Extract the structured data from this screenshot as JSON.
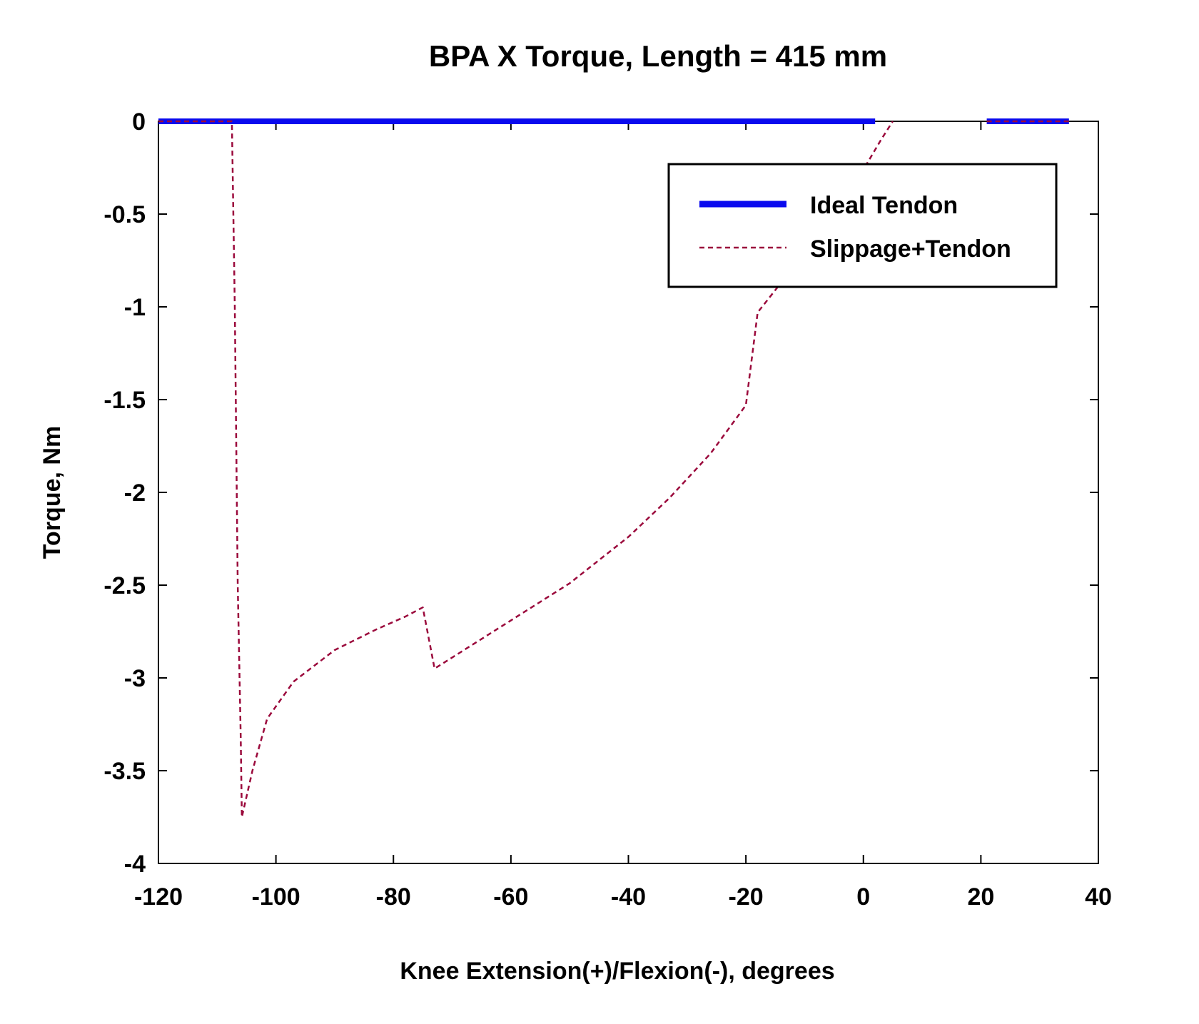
{
  "chart_data": {
    "type": "line",
    "title": "BPA X Torque, Length = 415 mm",
    "xlabel": "Knee Extension(+)/Flexion(-), degrees",
    "ylabel": "Torque, Nm",
    "xlim": [
      -120,
      40
    ],
    "ylim": [
      -4,
      0
    ],
    "xticks": [
      -120,
      -100,
      -80,
      -60,
      -40,
      -20,
      0,
      20,
      40
    ],
    "yticks": [
      0,
      -0.5,
      -1,
      -1.5,
      -2,
      -2.5,
      -3,
      -3.5,
      -4
    ],
    "xtick_labels": [
      "-120",
      "-100",
      "-80",
      "-60",
      "-40",
      "-20",
      "0",
      "20",
      "40"
    ],
    "ytick_labels": [
      "0",
      "-0.5",
      "-1",
      "-1.5",
      "-2",
      "-2.5",
      "-3",
      "-3.5",
      "-4"
    ],
    "grid": false,
    "legend_position": "top-right",
    "series": [
      {
        "name": "Ideal Tendon",
        "color": "#0a0aee",
        "style": "solid",
        "segments": [
          [
            [
              -120,
              0
            ],
            [
              2,
              0
            ]
          ],
          [
            [
              21,
              0
            ],
            [
              35,
              0
            ]
          ]
        ]
      },
      {
        "name": "Slippage+Tendon",
        "color": "#9b0a3c",
        "style": "dashed",
        "segments": [
          [
            [
              -120,
              0
            ],
            [
              -107.5,
              0
            ],
            [
              -107,
              -1.0
            ],
            [
              -106.5,
              -2.5
            ],
            [
              -106,
              -3.3
            ],
            [
              -105.8,
              -3.75
            ],
            [
              -104,
              -3.5
            ],
            [
              -101.5,
              -3.22
            ],
            [
              -97,
              -3.02
            ],
            [
              -90,
              -2.85
            ],
            [
              -83,
              -2.74
            ],
            [
              -78,
              -2.67
            ],
            [
              -75,
              -2.62
            ],
            [
              -73,
              -2.95
            ],
            [
              -67,
              -2.83
            ],
            [
              -60,
              -2.69
            ],
            [
              -50,
              -2.49
            ],
            [
              -40,
              -2.24
            ],
            [
              -33,
              -2.03
            ],
            [
              -26,
              -1.79
            ],
            [
              -20,
              -1.53
            ],
            [
              -18,
              -1.03
            ],
            [
              -14,
              -0.87
            ],
            [
              -8,
              -0.66
            ],
            [
              -4,
              -0.48
            ],
            [
              0,
              -0.26
            ],
            [
              3,
              -0.1
            ],
            [
              5,
              0
            ]
          ],
          [
            [
              21,
              0
            ],
            [
              35,
              0
            ]
          ]
        ]
      }
    ]
  }
}
